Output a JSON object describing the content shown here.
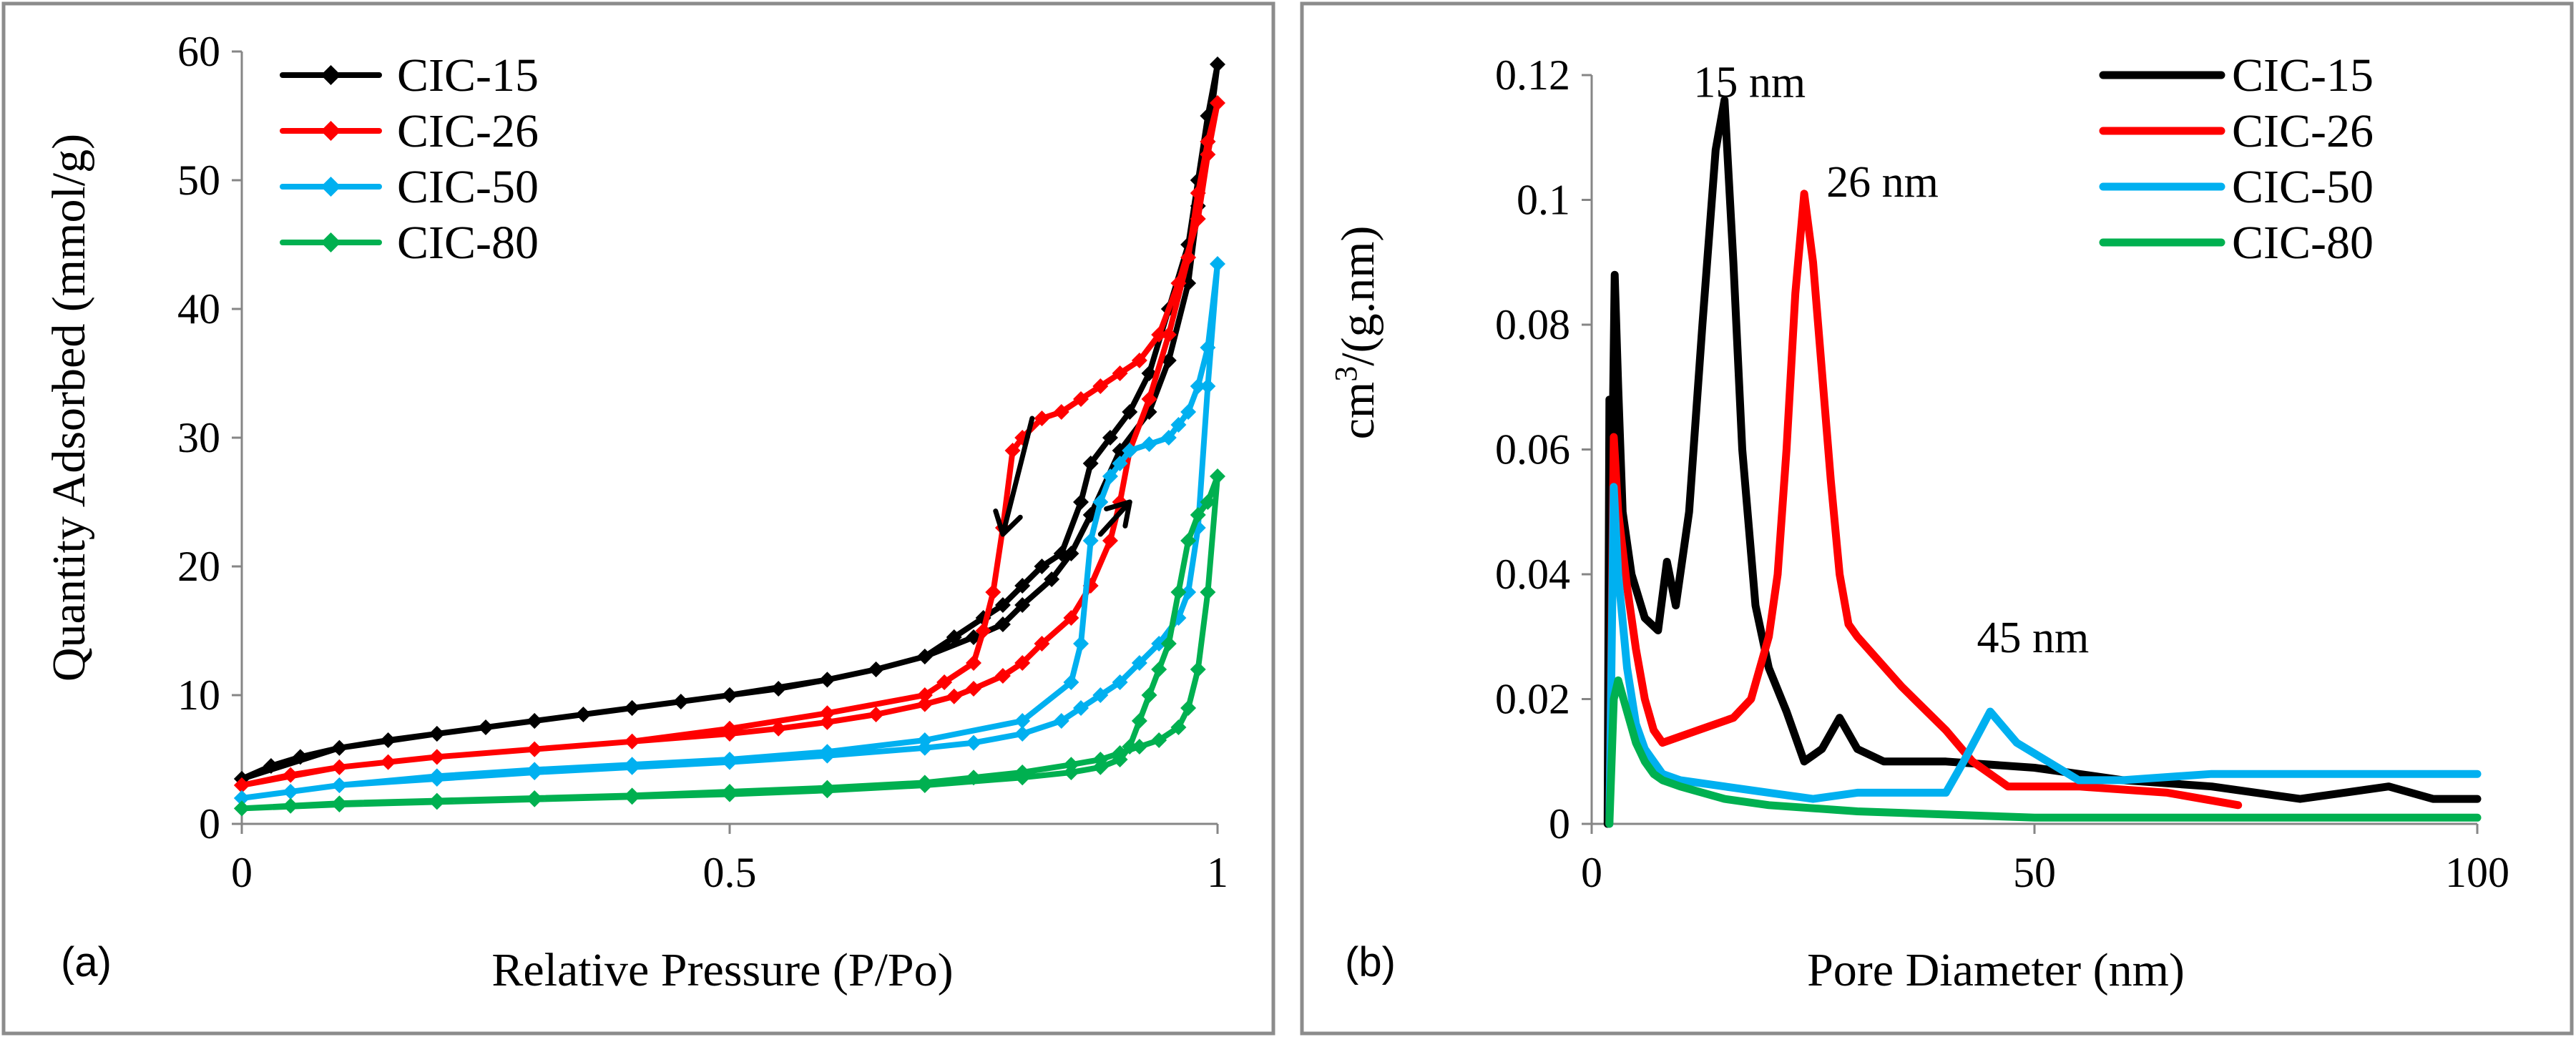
{
  "chart_data": [
    {
      "id": "a",
      "type": "line",
      "panel_label": "(a)",
      "title": "",
      "xlabel": "Relative Pressure  (P/Po)",
      "ylabel": "Quantity Adsorbed (mmol/g)",
      "xlim": [
        0,
        1
      ],
      "ylim": [
        0,
        60
      ],
      "xticks": [
        0,
        0.5,
        1
      ],
      "xtick_labels": [
        "0",
        "0.5",
        "1"
      ],
      "yticks": [
        0,
        10,
        20,
        30,
        40,
        50,
        60
      ],
      "grid": false,
      "legend_position": "top-left",
      "markers": true,
      "series": [
        {
          "name": "CIC-15",
          "color": "#000000",
          "x": [
            0.0,
            0.03,
            0.06,
            0.1,
            0.15,
            0.2,
            0.25,
            0.3,
            0.35,
            0.4,
            0.45,
            0.5,
            0.55,
            0.6,
            0.65,
            0.7,
            0.75,
            0.78,
            0.8,
            0.83,
            0.85,
            0.87,
            0.9,
            0.93,
            0.95,
            0.97,
            0.98,
            0.99,
            1.0,
            0.99,
            0.98,
            0.97,
            0.95,
            0.93,
            0.91,
            0.89,
            0.87,
            0.86,
            0.84,
            0.82,
            0.8,
            0.78,
            0.76,
            0.73,
            0.7,
            0.65,
            0.6,
            0.5,
            0.4,
            0.3,
            0.2,
            0.1,
            0.0
          ],
          "y": [
            3.5,
            4.5,
            5.2,
            5.9,
            6.5,
            7.0,
            7.5,
            8.0,
            8.5,
            9.0,
            9.5,
            10.0,
            10.5,
            11.2,
            12.0,
            13.0,
            14.5,
            15.5,
            17.0,
            19.0,
            21.0,
            24.0,
            29.0,
            32.0,
            36.0,
            42.0,
            48.0,
            53.0,
            59.0,
            55.0,
            50.0,
            45.0,
            40.0,
            35.0,
            32.0,
            30.0,
            28.0,
            25.0,
            21.0,
            20.0,
            18.5,
            17.0,
            16.0,
            14.5,
            13.0,
            12.0,
            11.2,
            10.0,
            9.0,
            8.0,
            7.0,
            5.9,
            3.5
          ]
        },
        {
          "name": "CIC-26",
          "color": "#ff0000",
          "x": [
            0.0,
            0.05,
            0.1,
            0.15,
            0.2,
            0.3,
            0.4,
            0.5,
            0.55,
            0.6,
            0.65,
            0.7,
            0.73,
            0.75,
            0.78,
            0.8,
            0.82,
            0.85,
            0.87,
            0.89,
            0.9,
            0.91,
            0.93,
            0.95,
            0.97,
            0.98,
            0.99,
            1.0,
            0.99,
            0.98,
            0.96,
            0.94,
            0.92,
            0.9,
            0.88,
            0.86,
            0.84,
            0.82,
            0.8,
            0.79,
            0.78,
            0.77,
            0.76,
            0.75,
            0.72,
            0.7,
            0.6,
            0.5,
            0.4,
            0.3,
            0.2,
            0.1,
            0.0
          ],
          "y": [
            3.0,
            3.8,
            4.4,
            4.8,
            5.2,
            5.8,
            6.4,
            7.0,
            7.4,
            7.9,
            8.5,
            9.3,
            9.9,
            10.5,
            11.5,
            12.5,
            14.0,
            16.0,
            18.5,
            22.0,
            25.0,
            29.0,
            33.0,
            38.0,
            44.0,
            49.0,
            53.0,
            56.0,
            52.0,
            47.0,
            42.0,
            38.0,
            36.0,
            35.0,
            34.0,
            33.0,
            32.0,
            31.5,
            30.0,
            29.0,
            23.0,
            18.0,
            15.0,
            12.5,
            11.0,
            10.0,
            8.6,
            7.4,
            6.4,
            5.8,
            5.2,
            4.4,
            3.0
          ]
        },
        {
          "name": "CIC-50",
          "color": "#00b0f0",
          "x": [
            0.0,
            0.05,
            0.1,
            0.2,
            0.3,
            0.4,
            0.5,
            0.6,
            0.7,
            0.75,
            0.8,
            0.84,
            0.86,
            0.88,
            0.9,
            0.92,
            0.94,
            0.96,
            0.97,
            0.98,
            0.99,
            1.0,
            0.99,
            0.98,
            0.97,
            0.96,
            0.95,
            0.93,
            0.91,
            0.9,
            0.89,
            0.88,
            0.87,
            0.86,
            0.85,
            0.8,
            0.7,
            0.6,
            0.5,
            0.4,
            0.3,
            0.2,
            0.1,
            0.0
          ],
          "y": [
            2.0,
            2.5,
            3.0,
            3.5,
            4.0,
            4.4,
            4.8,
            5.3,
            5.9,
            6.3,
            7.0,
            8.0,
            9.0,
            10.0,
            11.0,
            12.5,
            14.0,
            16.0,
            18.0,
            23.0,
            34.0,
            43.5,
            37.0,
            34.0,
            32.0,
            31.0,
            30.0,
            29.5,
            29.0,
            28.0,
            27.0,
            25.0,
            22.0,
            14.0,
            11.0,
            8.0,
            6.5,
            5.6,
            5.0,
            4.6,
            4.2,
            3.7,
            3.0,
            2.0
          ]
        },
        {
          "name": "CIC-80",
          "color": "#00b050",
          "x": [
            0.0,
            0.05,
            0.1,
            0.2,
            0.3,
            0.4,
            0.5,
            0.6,
            0.7,
            0.75,
            0.8,
            0.85,
            0.88,
            0.9,
            0.92,
            0.94,
            0.96,
            0.97,
            0.98,
            0.99,
            1.0,
            0.99,
            0.98,
            0.97,
            0.96,
            0.95,
            0.94,
            0.93,
            0.92,
            0.91,
            0.9,
            0.88,
            0.85,
            0.8,
            0.7,
            0.6,
            0.5,
            0.4,
            0.3,
            0.2,
            0.1,
            0.0
          ],
          "y": [
            1.2,
            1.4,
            1.6,
            1.8,
            2.0,
            2.2,
            2.5,
            2.8,
            3.2,
            3.6,
            4.0,
            4.6,
            5.0,
            5.5,
            6.0,
            6.5,
            7.5,
            9.0,
            12.0,
            18.0,
            27.0,
            25.0,
            24.0,
            22.0,
            18.0,
            14.0,
            12.0,
            10.0,
            8.0,
            6.0,
            5.0,
            4.4,
            4.0,
            3.6,
            3.0,
            2.6,
            2.3,
            2.1,
            1.9,
            1.7,
            1.5,
            1.2
          ]
        }
      ],
      "arrows": [
        {
          "name": "desorption-arrow",
          "from": [
            0.81,
            31.5
          ],
          "to": [
            0.78,
            22.5
          ]
        },
        {
          "name": "adsorption-arrow",
          "from": [
            0.88,
            22.5
          ],
          "to": [
            0.91,
            25.0
          ]
        }
      ]
    },
    {
      "id": "b",
      "type": "line",
      "panel_label": "(b)",
      "title": "",
      "xlabel": "Pore Diameter  (nm)",
      "ylabel_main": "cm",
      "ylabel_sup": "3",
      "ylabel_rest": "/(g.nm)",
      "xlim": [
        0,
        100
      ],
      "ylim": [
        0,
        0.12
      ],
      "xticks": [
        0,
        50,
        100
      ],
      "yticks": [
        0,
        0.02,
        0.04,
        0.06,
        0.08,
        0.1,
        0.12
      ],
      "ytick_labels": [
        "0",
        "0.02",
        "0.04",
        "0.06",
        "0.08",
        "0.1",
        "0.12"
      ],
      "grid": false,
      "legend_position": "top-right",
      "markers": false,
      "series": [
        {
          "name": "CIC-15",
          "color": "#000000",
          "x": [
            1.8,
            2.0,
            2.3,
            2.6,
            3.0,
            3.5,
            4.5,
            6.0,
            7.5,
            8.5,
            9.5,
            11.0,
            12.5,
            14.0,
            15.0,
            16.0,
            17.0,
            18.5,
            20.0,
            22.0,
            24.0,
            26.0,
            28.0,
            30.0,
            33.0,
            40.0,
            50.0,
            60.0,
            70.0,
            80.0,
            85.0,
            90.0,
            95.0,
            100.0
          ],
          "y": [
            0.0,
            0.068,
            0.055,
            0.088,
            0.07,
            0.05,
            0.04,
            0.033,
            0.031,
            0.042,
            0.035,
            0.05,
            0.08,
            0.108,
            0.116,
            0.09,
            0.06,
            0.035,
            0.025,
            0.018,
            0.01,
            0.012,
            0.017,
            0.012,
            0.01,
            0.01,
            0.009,
            0.007,
            0.006,
            0.004,
            0.005,
            0.006,
            0.004,
            0.004
          ]
        },
        {
          "name": "CIC-26",
          "color": "#ff0000",
          "x": [
            2.0,
            2.5,
            3.0,
            4.0,
            5.0,
            6.0,
            7.0,
            8.0,
            10.0,
            12.0,
            14.0,
            16.0,
            18.0,
            20.0,
            21.0,
            22.0,
            23.0,
            24.0,
            25.0,
            27.0,
            28.0,
            29.0,
            30.0,
            35.0,
            40.0,
            43.0,
            47.0,
            55.0,
            65.0,
            73.0
          ],
          "y": [
            0.0,
            0.062,
            0.05,
            0.038,
            0.028,
            0.02,
            0.015,
            0.013,
            0.014,
            0.015,
            0.016,
            0.017,
            0.02,
            0.03,
            0.04,
            0.06,
            0.085,
            0.101,
            0.09,
            0.055,
            0.04,
            0.032,
            0.03,
            0.022,
            0.015,
            0.01,
            0.006,
            0.006,
            0.005,
            0.003
          ]
        },
        {
          "name": "CIC-50",
          "color": "#00b0f0",
          "x": [
            2.0,
            2.5,
            3.0,
            4.0,
            5.0,
            6.0,
            8.0,
            10.0,
            15.0,
            20.0,
            25.0,
            30.0,
            35.0,
            40.0,
            42.0,
            45.0,
            48.0,
            55.0,
            60.0,
            70.0,
            80.0,
            90.0,
            100.0
          ],
          "y": [
            0.0,
            0.054,
            0.04,
            0.025,
            0.016,
            0.012,
            0.008,
            0.007,
            0.006,
            0.005,
            0.004,
            0.005,
            0.005,
            0.005,
            0.01,
            0.018,
            0.013,
            0.007,
            0.007,
            0.008,
            0.008,
            0.008,
            0.008
          ]
        },
        {
          "name": "CIC-80",
          "color": "#00b050",
          "x": [
            2.0,
            2.5,
            3.0,
            4.0,
            5.0,
            6.0,
            7.0,
            8.0,
            10.0,
            15.0,
            20.0,
            30.0,
            40.0,
            50.0,
            60.0,
            70.0,
            80.0,
            90.0,
            100.0
          ],
          "y": [
            0.0,
            0.02,
            0.023,
            0.018,
            0.013,
            0.01,
            0.008,
            0.007,
            0.006,
            0.004,
            0.003,
            0.002,
            0.0015,
            0.001,
            0.001,
            0.001,
            0.001,
            0.001,
            0.001
          ]
        }
      ],
      "annotations": [
        {
          "text": "15 nm",
          "x": 11.5,
          "y": 0.1165
        },
        {
          "text": "26 nm",
          "x": 26.5,
          "y": 0.1005
        },
        {
          "text": "45 nm",
          "x": 43.5,
          "y": 0.0275
        }
      ]
    }
  ]
}
